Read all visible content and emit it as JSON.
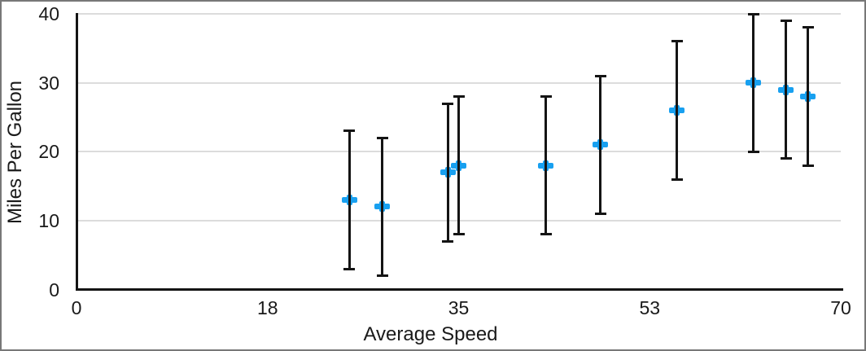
{
  "figure": {
    "background": "#ffffff",
    "border_color": "#787878"
  },
  "colors": {
    "marker": "#18a0f0",
    "axis": "#141414",
    "gridline": "#dcdcdc",
    "text": "#1a1a1a"
  },
  "chart_data": {
    "type": "scatter",
    "title": "",
    "xlabel": "Average Speed",
    "ylabel": "Miles Per Gallon",
    "xlim": [
      0,
      70
    ],
    "ylim": [
      0,
      40
    ],
    "x_tick_values": [
      0,
      17.5,
      35,
      52.5,
      70
    ],
    "x_tick_labels": [
      "0",
      "18",
      "35",
      "53",
      "70"
    ],
    "y_tick_values": [
      0,
      10,
      20,
      30,
      40
    ],
    "y_tick_labels": [
      "0",
      "10",
      "20",
      "30",
      "40"
    ],
    "grid": "horizontal",
    "legend": "none",
    "marker_shape": "plus",
    "error_bars": "y, plus-minus 10",
    "series": [
      {
        "name": "Miles Per Gallon",
        "points": [
          {
            "x": 25,
            "y": 13,
            "y_err_low": 3,
            "y_err_high": 23
          },
          {
            "x": 28,
            "y": 12,
            "y_err_low": 2,
            "y_err_high": 22
          },
          {
            "x": 34,
            "y": 17,
            "y_err_low": 7,
            "y_err_high": 27
          },
          {
            "x": 35,
            "y": 18,
            "y_err_low": 8,
            "y_err_high": 28
          },
          {
            "x": 43,
            "y": 18,
            "y_err_low": 8,
            "y_err_high": 28
          },
          {
            "x": 48,
            "y": 21,
            "y_err_low": 11,
            "y_err_high": 31
          },
          {
            "x": 55,
            "y": 26,
            "y_err_low": 16,
            "y_err_high": 36
          },
          {
            "x": 62,
            "y": 30,
            "y_err_low": 20,
            "y_err_high": 40
          },
          {
            "x": 65,
            "y": 29,
            "y_err_low": 19,
            "y_err_high": 39
          },
          {
            "x": 67,
            "y": 28,
            "y_err_low": 18,
            "y_err_high": 38
          }
        ]
      }
    ]
  }
}
